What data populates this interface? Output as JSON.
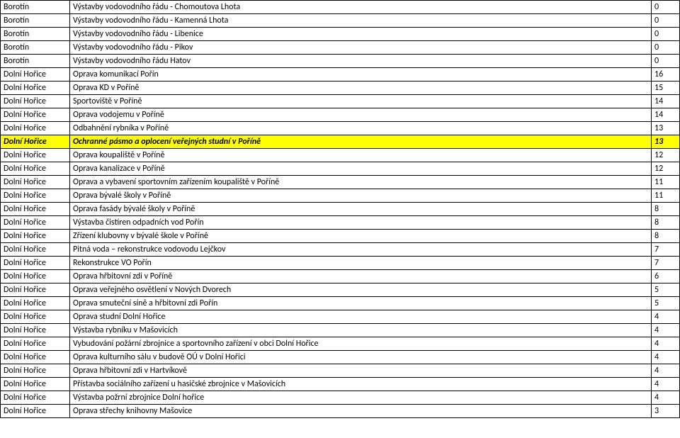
{
  "rows": [
    {
      "a": "Borotín",
      "b": "Výstavby vodovodního řádu - Chomoutova Lhota",
      "c": "0",
      "hl": false
    },
    {
      "a": "Borotín",
      "b": "Výstavby vodovodního řádu - Kamenná Lhota",
      "c": "0",
      "hl": false
    },
    {
      "a": "Borotín",
      "b": "Výstavby vodovodního řádu - Libenice",
      "c": "0",
      "hl": false
    },
    {
      "a": "Borotín",
      "b": "Výstavby vodovodního řádu - Pikov",
      "c": "0",
      "hl": false
    },
    {
      "a": "Borotín",
      "b": "Výstavby vodovodního řádu Hatov",
      "c": "0",
      "hl": false
    },
    {
      "a": "Dolní Hořice",
      "b": "Oprava komunikací Pořín",
      "c": "16",
      "hl": false
    },
    {
      "a": "Dolní Hořice",
      "b": "Oprava KD v Poříně",
      "c": "15",
      "hl": false
    },
    {
      "a": "Dolní Hořice",
      "b": "Sportoviště v Poříně",
      "c": "14",
      "hl": false
    },
    {
      "a": "Dolní Hořice",
      "b": "Oprava vodojemu v Poříně",
      "c": "14",
      "hl": false
    },
    {
      "a": "Dolní Hořice",
      "b": "Odbahnění rybníka v Poříně",
      "c": "13",
      "hl": false
    },
    {
      "a": "Dolní Hořice",
      "b": "Ochranné pásmo a oplocení veřejných studní v Poříně",
      "c": "13",
      "hl": true
    },
    {
      "a": "Dolní Hořice",
      "b": "Oprava koupaliště v Poříně",
      "c": "12",
      "hl": false
    },
    {
      "a": "Dolní Hořice",
      "b": "Oprava kanalizace v Poříně",
      "c": "12",
      "hl": false
    },
    {
      "a": "Dolní Hořice",
      "b": "Oprava a vybavení sportovním zařízením koupaliště v Poříně",
      "c": "11",
      "hl": false
    },
    {
      "a": "Dolní Hořice",
      "b": "Oprava bývalé školy v Poříně",
      "c": "11",
      "hl": false
    },
    {
      "a": "Dolní Hořice",
      "b": "Oprava fasády bývalé školy v Poříně",
      "c": "8",
      "hl": false
    },
    {
      "a": "Dolní Hořice",
      "b": "Výstavba čistíren odpadních vod Pořín",
      "c": "8",
      "hl": false
    },
    {
      "a": "Dolní Hořice",
      "b": "Zřízení klubovny v bývalé škole v Poříně",
      "c": "8",
      "hl": false
    },
    {
      "a": "Dolní Hořice",
      "b": "Pitná voda – rekonstrukce vodovodu Lejčkov",
      "c": "7",
      "hl": false
    },
    {
      "a": "Dolní Hořice",
      "b": "Rekonstrukce VO Pořín",
      "c": "7",
      "hl": false
    },
    {
      "a": "Dolní Hořice",
      "b": "Oprava hřbitovní zdi v Poříně",
      "c": "6",
      "hl": false
    },
    {
      "a": "Dolní Hořice",
      "b": "Oprava veřejného osvětlení v Nových Dvorech",
      "c": "5",
      "hl": false
    },
    {
      "a": "Dolní Hořice",
      "b": "Oprava smuteční síně a hřbitovní zdi Pořín",
      "c": "5",
      "hl": false
    },
    {
      "a": "Dolní Hořice",
      "b": "Oprava studní Dolní Hořice",
      "c": "4",
      "hl": false
    },
    {
      "a": "Dolní Hořice",
      "b": "Výstavba rybníku v Mašovicích",
      "c": "4",
      "hl": false
    },
    {
      "a": "Dolní Hořice",
      "b": "Vybudování požární zbrojnice a sportovního zařízení v obci Dolní Hořice",
      "c": "4",
      "hl": false
    },
    {
      "a": "Dolní Hořice",
      "b": "Oprava kulturního sálu v budově OÚ v  Dolní Hořici",
      "c": "4",
      "hl": false
    },
    {
      "a": "Dolní Hořice",
      "b": "Oprava hřbitovní zdi v Hartvíkově",
      "c": "4",
      "hl": false
    },
    {
      "a": "Dolní Hořice",
      "b": "Přístavba sociálního zařízení u hasičské zbrojnice v Mašovicích",
      "c": "4",
      "hl": false
    },
    {
      "a": "Dolní Hořice",
      "b": "Výstavba požrní zbrojnice Dolní hořice",
      "c": "4",
      "hl": false
    },
    {
      "a": "Dolní Hořice",
      "b": "Oprava střechy knihovny Mašovice",
      "c": "3",
      "hl": false
    }
  ]
}
